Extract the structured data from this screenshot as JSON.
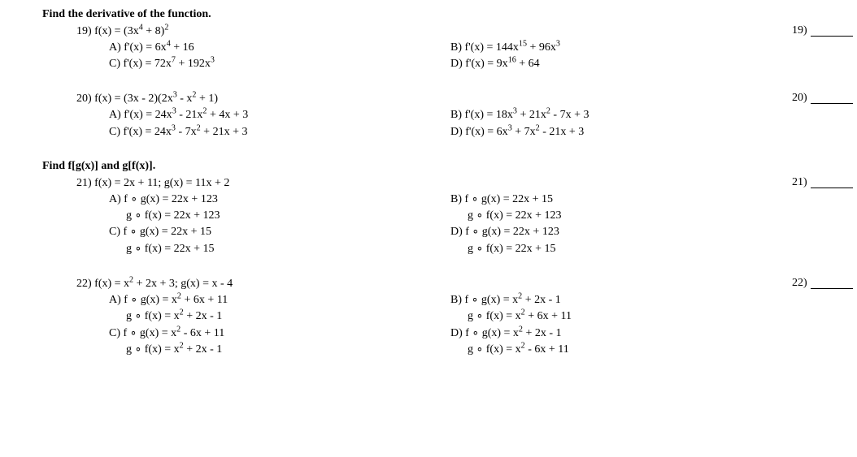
{
  "sections": {
    "derivative_head": "Find the derivative of the function.",
    "compose_head": "Find f[g(x)] and g[f(x)]."
  },
  "q19": {
    "num_label": "19)",
    "stem_html": "19) f(x) = (3x<sup>4</sup> + 8)<sup>2</sup>",
    "A": "A) f'(x) = 6x<sup>4</sup> + 16",
    "B": "B) f'(x) = 144x<sup>15</sup> + 96x<sup>3</sup>",
    "C": "C) f'(x) = 72x<sup>7</sup> + 192x<sup>3</sup>",
    "D": "D) f'(x) = 9x<sup>16</sup> + 64"
  },
  "q20": {
    "num_label": "20)",
    "stem_html": "20) f(x) = (3x - 2)(2x<sup>3</sup> - x<sup>2</sup> + 1)",
    "A": "A) f'(x) = 24x<sup>3</sup> - 21x<sup>2</sup> + 4x + 3",
    "B": "B) f'(x) = 18x<sup>3</sup> + 21x<sup>2</sup> - 7x + 3",
    "C": "C) f'(x) = 24x<sup>3</sup> - 7x<sup>2</sup> + 21x + 3",
    "D": "D) f'(x) = 6x<sup>3</sup> + 7x<sup>2</sup> - 21x + 3"
  },
  "q21": {
    "num_label": "21)",
    "stem_html": "21) f(x) = 2x + 11; g(x) = 11x + 2",
    "A1": "A) f ∘ g(x) = 22x + 123",
    "A2": "g ∘ f(x) = 22x + 123",
    "B1": "B) f ∘ g(x) = 22x + 15",
    "B2": "g ∘ f(x) = 22x + 123",
    "C1": "C) f ∘ g(x) = 22x + 15",
    "C2": "g ∘ f(x) = 22x + 15",
    "D1": "D) f ∘ g(x) = 22x + 123",
    "D2": "g ∘ f(x) = 22x + 15"
  },
  "q22": {
    "num_label": "22)",
    "stem_html": "22) f(x) = x<sup>2</sup> + 2x + 3; g(x) = x - 4",
    "A1": "A) f ∘ g(x) = x<sup>2</sup> + 6x + 11",
    "A2": "g ∘ f(x) = x<sup>2</sup> + 2x - 1",
    "B1": "B) f ∘ g(x) = x<sup>2</sup> + 2x - 1",
    "B2": "g ∘ f(x) = x<sup>2</sup> + 6x + 11",
    "C1": "C) f ∘ g(x) = x<sup>2</sup> - 6x + 11",
    "C2": "g ∘ f(x) = x<sup>2</sup> + 2x - 1",
    "D1": "D) f ∘ g(x) = x<sup>2</sup> + 2x - 1",
    "D2": "g ∘ f(x) = x<sup>2</sup> - 6x + 11"
  }
}
